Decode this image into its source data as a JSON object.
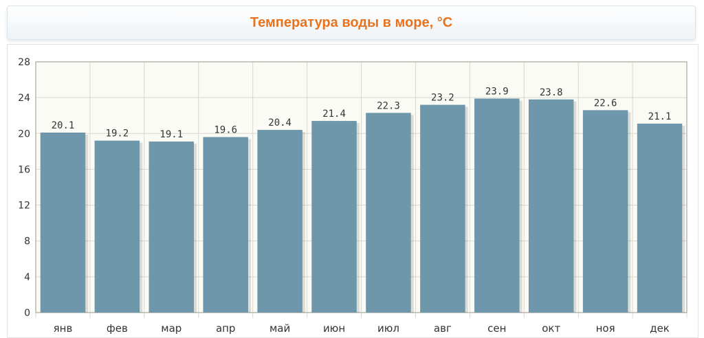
{
  "header": {
    "title": "Температура воды в море, °C"
  },
  "colors": {
    "bar": "#6f97ab",
    "title": "#e8731f",
    "plot_bg": "#fbfbf5"
  },
  "chart_data": {
    "type": "bar",
    "title": "Температура воды в море, °C",
    "categories": [
      "янв",
      "фев",
      "мар",
      "апр",
      "май",
      "июн",
      "июл",
      "авг",
      "сен",
      "окт",
      "ноя",
      "дек"
    ],
    "series": [
      {
        "values": [
          20.1,
          19.2,
          19.1,
          19.6,
          20.4,
          21.4,
          22.3,
          23.2,
          23.9,
          23.8,
          22.6,
          21.1
        ]
      }
    ],
    "value_labels": [
      "20.1",
      "19.2",
      "19.1",
      "19.6",
      "20.4",
      "21.4",
      "22.3",
      "23.2",
      "23.9",
      "23.8",
      "22.6",
      "21.1"
    ],
    "ylim": [
      0,
      28
    ],
    "yticks": [
      "0",
      "4",
      "8",
      "12",
      "16",
      "20",
      "24",
      "28"
    ],
    "grid": true,
    "xlabel": "",
    "ylabel": ""
  }
}
